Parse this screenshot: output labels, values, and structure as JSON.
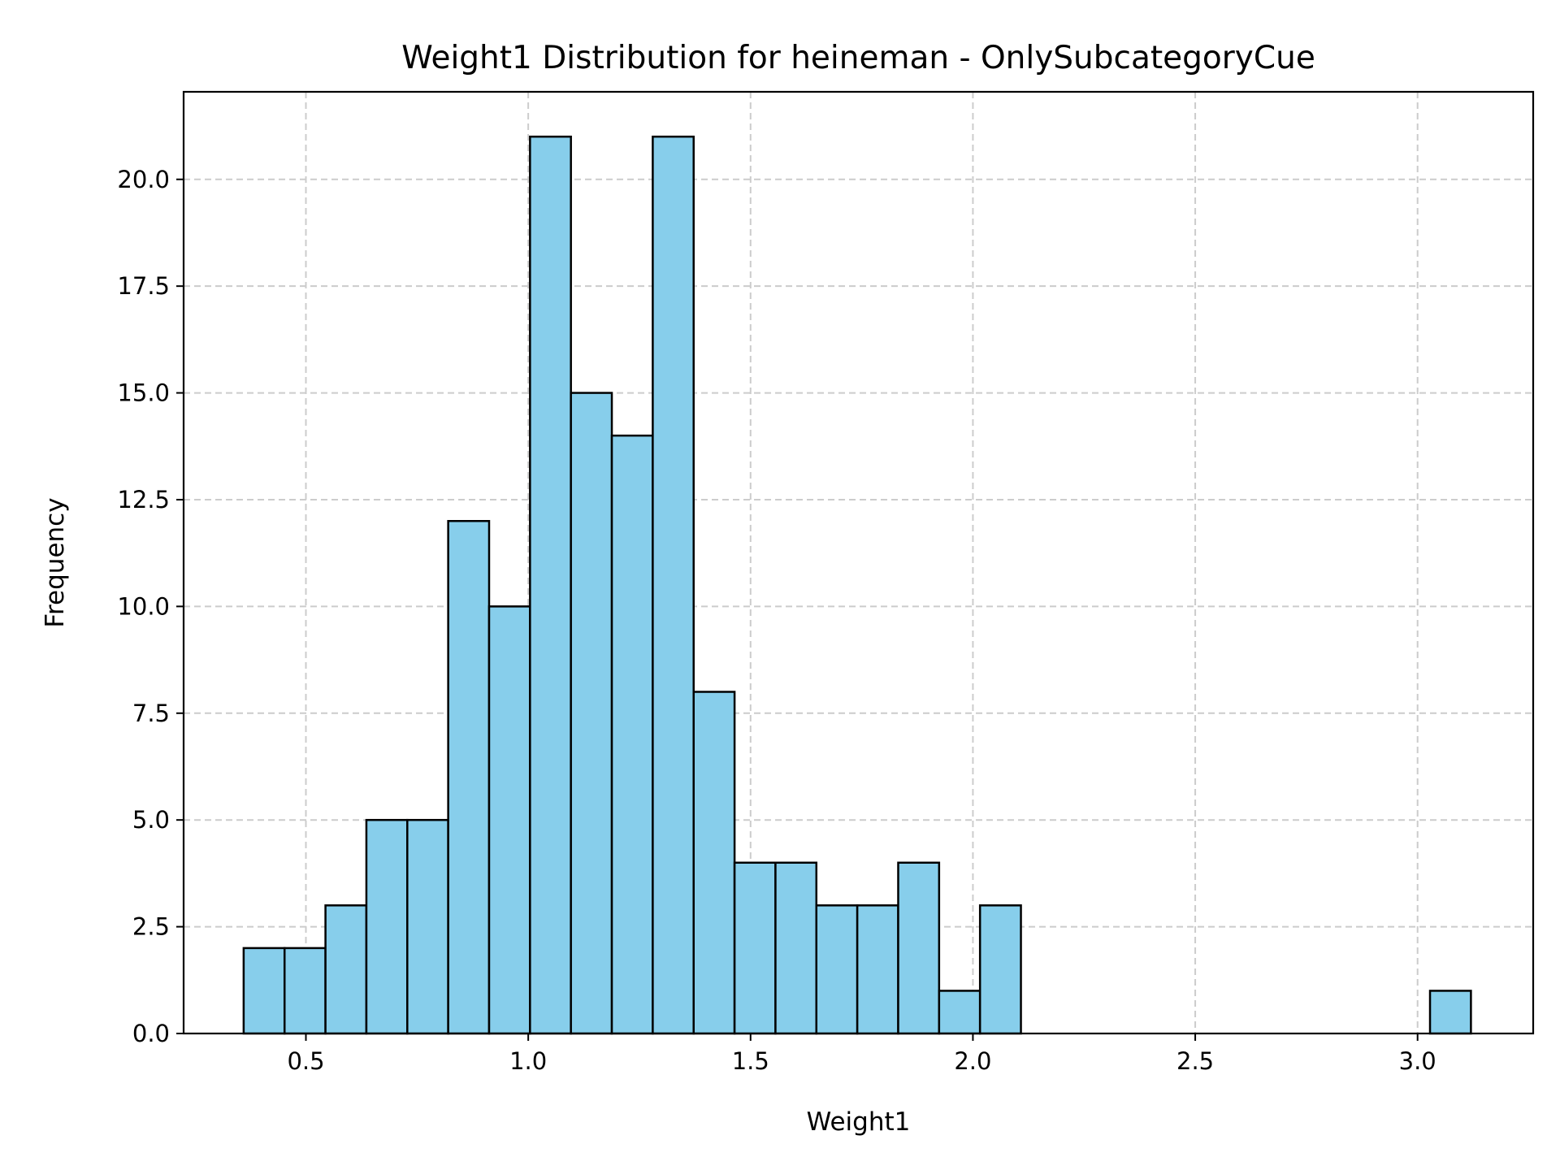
{
  "chart_data": {
    "type": "bar",
    "subtype": "histogram",
    "title": "Weight1 Distribution for heineman - OnlySubcategoryCue",
    "xlabel": "Weight1",
    "ylabel": "Frequency",
    "xlim": [
      0.225,
      3.26
    ],
    "ylim": [
      0,
      22.05
    ],
    "xticks": [
      0.5,
      1.0,
      1.5,
      2.0,
      2.5,
      3.0
    ],
    "xtick_labels": [
      "0.5",
      "1.0",
      "1.5",
      "2.0",
      "2.5",
      "3.0"
    ],
    "yticks": [
      0,
      2.5,
      5,
      7.5,
      10,
      12.5,
      15,
      17.5,
      20
    ],
    "ytick_labels": [
      "0.0",
      "2.5",
      "5.0",
      "7.5",
      "10.0",
      "12.5",
      "15.0",
      "17.5",
      "20.0"
    ],
    "bin_edges": [
      0.36,
      0.452,
      0.544,
      0.636,
      0.728,
      0.82,
      0.912,
      1.004,
      1.096,
      1.188,
      1.28,
      1.372,
      1.464,
      1.556,
      1.648,
      1.74,
      1.832,
      1.924,
      2.016,
      2.108,
      2.2,
      2.292,
      2.384,
      2.476,
      2.568,
      2.66,
      2.752,
      2.844,
      2.936,
      3.028,
      3.12
    ],
    "values": [
      2,
      2,
      3,
      5,
      5,
      12,
      10,
      21,
      15,
      14,
      21,
      8,
      4,
      4,
      3,
      3,
      4,
      1,
      3,
      0,
      0,
      0,
      0,
      0,
      0,
      0,
      0,
      0,
      0,
      1
    ],
    "bar_color": "#87ceeb",
    "edge_color": "#000000",
    "grid": true,
    "grid_color": "#cccccc",
    "legend": false
  }
}
